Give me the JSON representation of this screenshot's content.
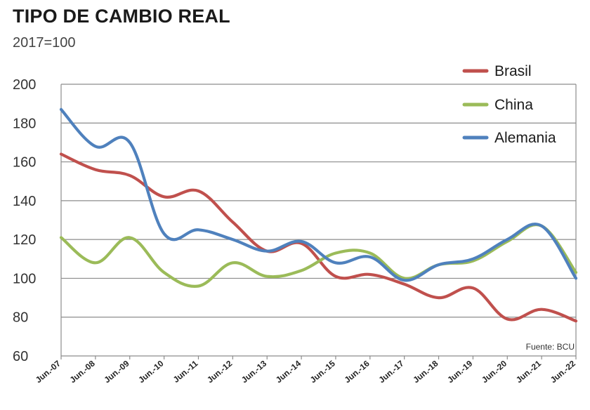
{
  "chart_data": {
    "type": "line",
    "title": "TIPO DE CAMBIO REAL",
    "subtitle": "2017=100",
    "source": "Fuente: BCU",
    "xlabel": "",
    "ylabel": "",
    "ylim": [
      60,
      200
    ],
    "yticks": [
      60,
      80,
      100,
      120,
      140,
      160,
      180,
      200
    ],
    "grid": true,
    "legend_position": "top-right",
    "categories": [
      "Jun.-07",
      "Jun.-08",
      "Jun.-09",
      "Jun.-10",
      "Jun.-11",
      "Jun.-12",
      "Jun.-13",
      "Jun.-14",
      "Jun.-15",
      "Jun.-16",
      "Jun.-17",
      "Jun.-18",
      "Jun.-19",
      "Jun.-20",
      "Jun.-21",
      "Jun.-22"
    ],
    "series": [
      {
        "name": "Brasil",
        "color": "#c0504d",
        "values": [
          164,
          156,
          153,
          142,
          145,
          129,
          114,
          118,
          101,
          102,
          97,
          90,
          95,
          79,
          84,
          78
        ]
      },
      {
        "name": "China",
        "color": "#9bbb59",
        "values": [
          121,
          108,
          121,
          103,
          96,
          108,
          101,
          104,
          113,
          113,
          100,
          107,
          109,
          119,
          127,
          103
        ]
      },
      {
        "name": "Alemania",
        "color": "#4f81bd",
        "values": [
          187,
          168,
          170,
          123,
          125,
          120,
          114,
          119,
          108,
          111,
          99,
          107,
          110,
          120,
          127,
          100
        ]
      }
    ]
  }
}
